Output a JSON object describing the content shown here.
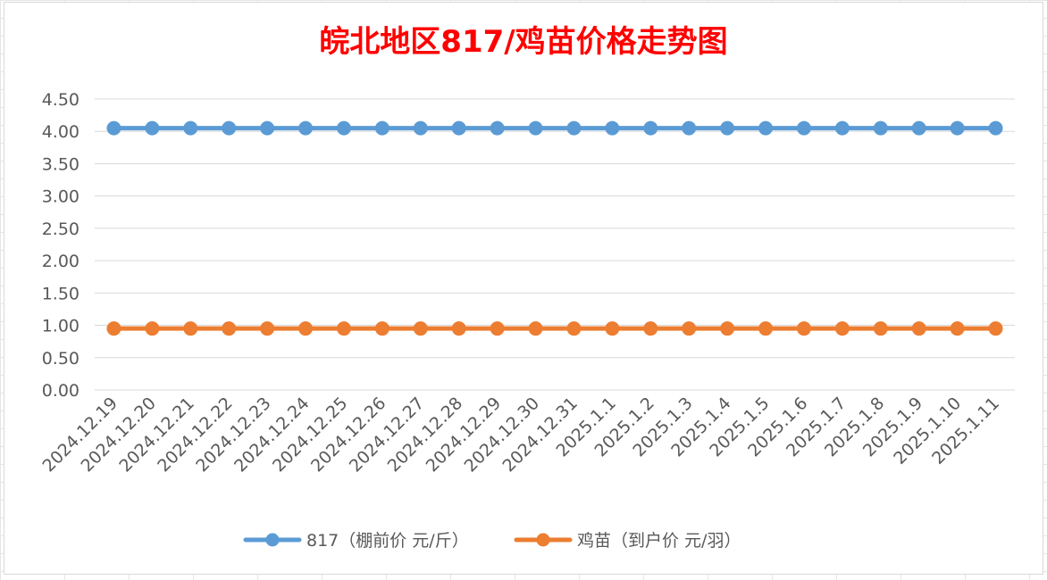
{
  "chart_data": {
    "type": "line",
    "title": "皖北地区817/鸡苗价格走势图",
    "categories": [
      "2024.12.19",
      "2024.12.20",
      "2024.12.21",
      "2024.12.22",
      "2024.12.23",
      "2024.12.24",
      "2024.12.25",
      "2024.12.26",
      "2024.12.27",
      "2024.12.28",
      "2024.12.29",
      "2024.12.30",
      "2024.12.31",
      "2025.1.1",
      "2025.1.2",
      "2025.1.3",
      "2025.1.4",
      "2025.1.5",
      "2025.1.6",
      "2025.1.7",
      "2025.1.8",
      "2025.1.9",
      "2025.1.10",
      "2025.1.11"
    ],
    "series": [
      {
        "name": "817（棚前价 元/斤）",
        "color": "#5b9bd5",
        "values": [
          4.05,
          4.05,
          4.05,
          4.05,
          4.05,
          4.05,
          4.05,
          4.05,
          4.05,
          4.05,
          4.05,
          4.05,
          4.05,
          4.05,
          4.05,
          4.05,
          4.05,
          4.05,
          4.05,
          4.05,
          4.05,
          4.05,
          4.05,
          4.05
        ]
      },
      {
        "name": "鸡苗（到户价 元/羽）",
        "color": "#ed7d31",
        "values": [
          0.95,
          0.95,
          0.95,
          0.95,
          0.95,
          0.95,
          0.95,
          0.95,
          0.95,
          0.95,
          0.95,
          0.95,
          0.95,
          0.95,
          0.95,
          0.95,
          0.95,
          0.95,
          0.95,
          0.95,
          0.95,
          0.95,
          0.95,
          0.95
        ]
      }
    ],
    "ylim": [
      0,
      4.5
    ],
    "yticks": [
      "0.00",
      "0.50",
      "1.00",
      "1.50",
      "2.00",
      "2.50",
      "3.00",
      "3.50",
      "4.00",
      "4.50"
    ],
    "grid": true,
    "legend_position": "bottom",
    "title_color": "#ff0000"
  }
}
